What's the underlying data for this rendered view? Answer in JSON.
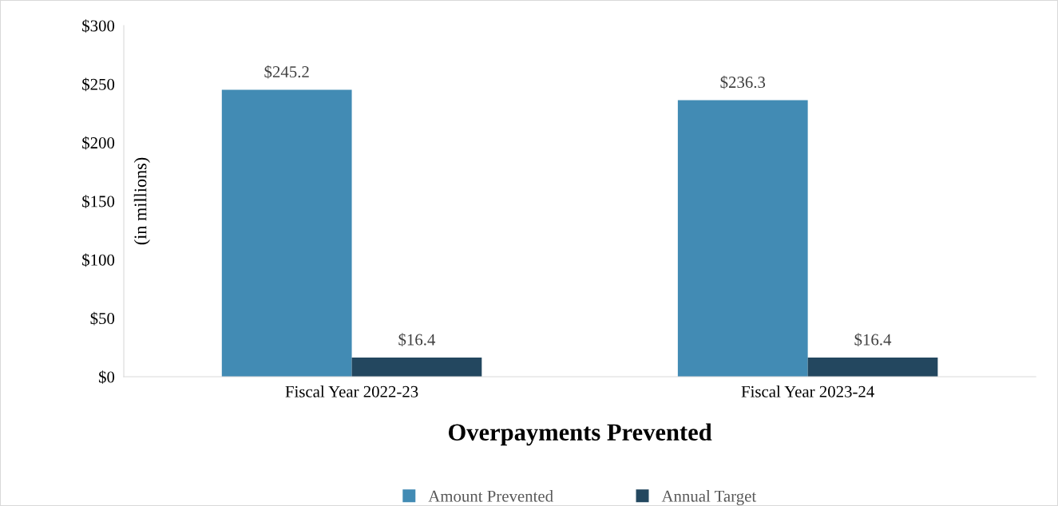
{
  "chart_data": {
    "type": "bar",
    "title": "Overpayments Prevented",
    "ylabel": "(in millions)",
    "categories": [
      "Fiscal Year 2022-23",
      "Fiscal Year 2023-24"
    ],
    "series": [
      {
        "name": "Amount Prevented",
        "color": "#428bb4",
        "values": [
          245.2,
          236.3
        ],
        "value_labels": [
          "$245.2",
          "$236.3"
        ]
      },
      {
        "name": "Annual Target",
        "color": "#23475f",
        "values": [
          16.4,
          16.4
        ],
        "value_labels": [
          "$16.4",
          "$16.4"
        ]
      }
    ],
    "ylim": [
      0,
      300
    ],
    "yticks": [
      {
        "value": 0,
        "label": "$0"
      },
      {
        "value": 50,
        "label": "$50"
      },
      {
        "value": 100,
        "label": "$100"
      },
      {
        "value": 150,
        "label": "$150"
      },
      {
        "value": 200,
        "label": "$200"
      },
      {
        "value": 250,
        "label": "$250"
      },
      {
        "value": 300,
        "label": "$300"
      }
    ],
    "grid": false,
    "legend": "bottom"
  }
}
